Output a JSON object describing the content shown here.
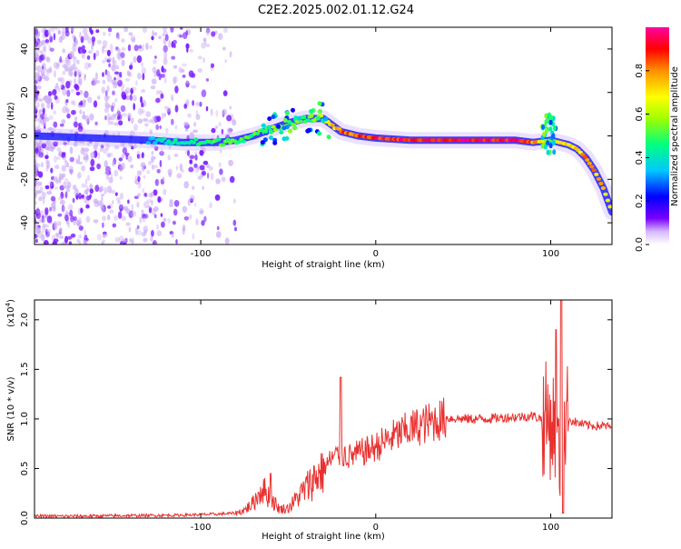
{
  "title": "C2E2.2025.002.01.12.G24",
  "colors": {
    "line": "#e8312f",
    "axis": "#000000",
    "background": "#ffffff"
  },
  "chart_data": [
    {
      "type": "heatmap",
      "xlabel": "Height of straight line (km)",
      "ylabel": "Frequency (Hz)",
      "xlim": [
        -195,
        135
      ],
      "ylim": [
        -50,
        50
      ],
      "xticks": [
        -100,
        0,
        100
      ],
      "yticks": [
        -40,
        -20,
        0,
        20,
        40
      ],
      "grid": false,
      "colorbar": {
        "label": "Normalized spectral amplitude",
        "range": [
          0,
          1
        ],
        "ticks": [
          0.0,
          0.2,
          0.4,
          0.6,
          0.8
        ],
        "colors": [
          "#ffffff",
          "#7a00ff",
          "#0000ff",
          "#00c8ff",
          "#00ff80",
          "#a0ff00",
          "#ffff00",
          "#ff9000",
          "#ff0000",
          "#ff00a0"
        ]
      },
      "ridge": {
        "x": [
          -195,
          -160,
          -130,
          -110,
          -90,
          -80,
          -70,
          -60,
          -50,
          -40,
          -30,
          -20,
          -10,
          0,
          20,
          40,
          60,
          80,
          90,
          100,
          105,
          110,
          115,
          120,
          125,
          130,
          135
        ],
        "y": [
          0,
          -1,
          -2,
          -3,
          -3,
          -2,
          0,
          3,
          6,
          8,
          8,
          2,
          0,
          -1,
          -2,
          -2,
          -2,
          -2,
          -3,
          -2,
          -3,
          -4,
          -6,
          -10,
          -16,
          -24,
          -35
        ],
        "amplitude": [
          0.1,
          0.2,
          0.35,
          0.45,
          0.5,
          0.5,
          0.5,
          0.55,
          0.5,
          0.5,
          0.6,
          0.85,
          0.85,
          0.9,
          0.95,
          0.95,
          0.95,
          0.95,
          0.85,
          0.5,
          0.7,
          0.7,
          0.75,
          0.8,
          0.8,
          0.75,
          0.7
        ]
      }
    },
    {
      "type": "line",
      "xlabel": "Height of straight line (km)",
      "ylabel": "SNR (10 * v/v)",
      "yscale_label": "(x10",
      "yscale_exp": "4",
      "xlim": [
        -195,
        135
      ],
      "ylim": [
        0,
        22000
      ],
      "xticks": [
        -100,
        0,
        100
      ],
      "yticks": [
        0,
        5000,
        10000,
        15000,
        20000
      ],
      "ytick_labels": [
        "0.0",
        "0.5",
        "1.0",
        "1.5",
        "2.0"
      ],
      "grid": false,
      "series": [
        {
          "x": [
            -195,
            -170,
            -140,
            -110,
            -90,
            -80,
            -75,
            -70,
            -65,
            -60,
            -55,
            -50,
            -45,
            -40,
            -35,
            -30,
            -25,
            -20,
            -15,
            -10,
            -5,
            0,
            10,
            20,
            30,
            40,
            50,
            60,
            70,
            80,
            90,
            95,
            100,
            103,
            105,
            107,
            110,
            115,
            120,
            125,
            130,
            135
          ],
          "y": [
            200,
            200,
            250,
            300,
            400,
            500,
            800,
            1500,
            3000,
            2000,
            900,
            1000,
            2000,
            3000,
            4000,
            5000,
            6000,
            6500,
            6200,
            6500,
            6800,
            7200,
            8200,
            9000,
            9600,
            10100,
            10000,
            10000,
            10100,
            10200,
            10300,
            10000,
            9800,
            9000,
            5000,
            9000,
            10000,
            9600,
            9400,
            9300,
            9300,
            9200
          ],
          "spikes": [
            {
              "x": -60,
              "y": 4500
            },
            {
              "x": -20,
              "y": 14200
            },
            {
              "x": 103,
              "y": 19000
            },
            {
              "x": 106,
              "y": 22000
            },
            {
              "x": 107,
              "y": 500
            }
          ]
        }
      ]
    }
  ]
}
